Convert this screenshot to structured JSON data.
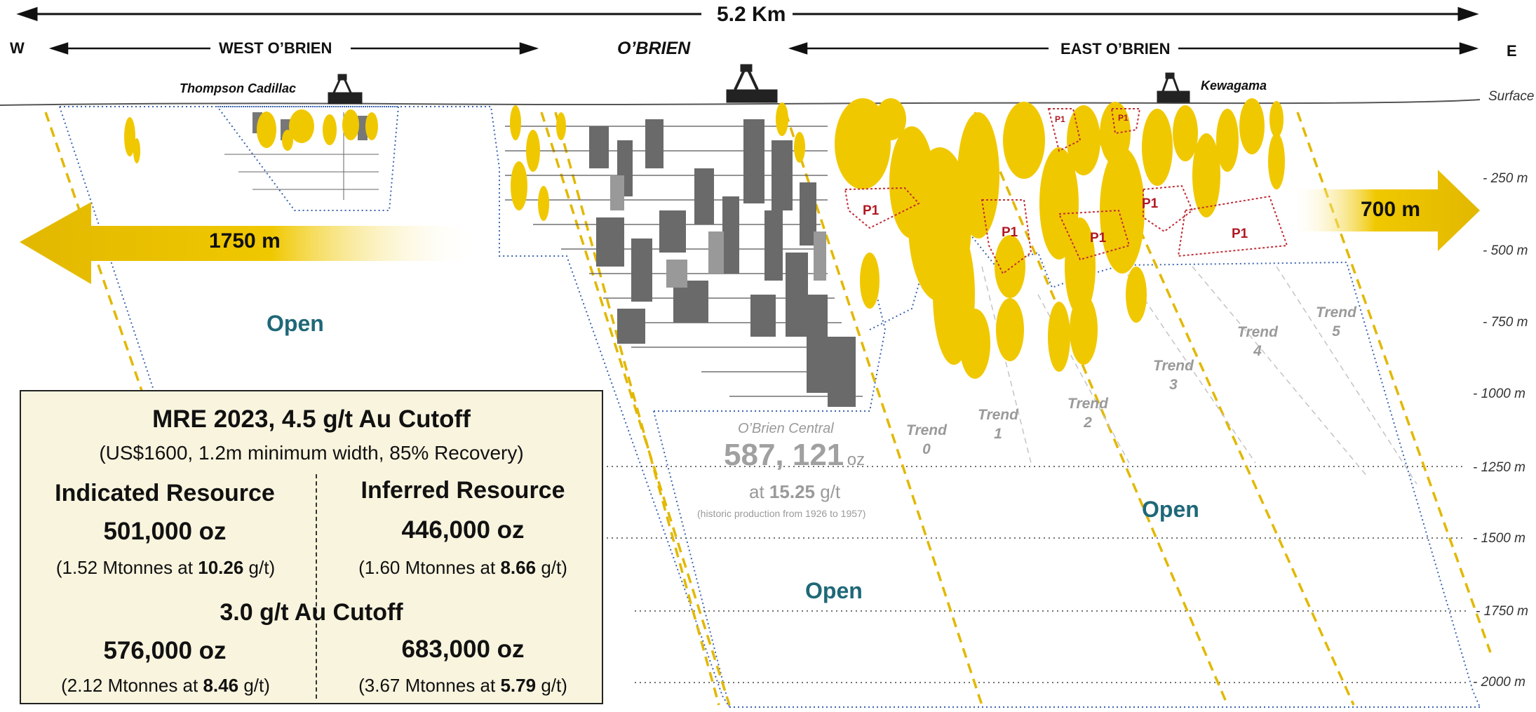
{
  "header": {
    "total_length": "5.2 Km",
    "west_letter": "W",
    "east_letter": "E",
    "west_section": "WEST O’BRIEN",
    "central_section": "O’BRIEN",
    "east_section": "EAST O’BRIEN"
  },
  "mines": {
    "thompson": "Thompson Cadillac",
    "kewagama": "Kewagama"
  },
  "depth_labels": [
    "Surface",
    "- 250 m",
    "- 500 m",
    "- 750 m",
    "- 1000 m",
    "- 1250 m",
    "- 1500 m",
    "- 1750 m",
    "- 2000 m"
  ],
  "arrows": {
    "west": "1750 m",
    "east": "700 m"
  },
  "open_labels": [
    "Open",
    "Open",
    "Open"
  ],
  "zones": {
    "p1_label": "P1"
  },
  "trends": [
    {
      "line1": "Trend",
      "line2": "0"
    },
    {
      "line1": "Trend",
      "line2": "1"
    },
    {
      "line1": "Trend",
      "line2": "2"
    },
    {
      "line1": "Trend",
      "line2": "3"
    },
    {
      "line1": "Trend",
      "line2": "4"
    },
    {
      "line1": "Trend",
      "line2": "5"
    }
  ],
  "historic": {
    "title": "O’Brien Central",
    "ounces": "587, 121",
    "unit": "oz",
    "grade_prefix": "at",
    "grade": "15.25",
    "grade_unit": "g/t",
    "note": "(historic production from 1926 to 1957)"
  },
  "mre": {
    "title": "MRE 2023, 4.5 g/t Au Cutoff",
    "params": "(US$1600, 1.2m minimum width, 85% Recovery)",
    "indicated_header": "Indicated Resource",
    "inferred_header": "Inferred Resource",
    "indicated_oz": "501,000 oz",
    "inferred_oz": "446,000 oz",
    "indicated_detail_prefix": "(1.52 Mtonnes at",
    "indicated_detail_grade": "10.26",
    "inferred_detail_prefix": "(1.60 Mtonnes at",
    "inferred_detail_grade": "8.66",
    "detail_suffix": "g/t)",
    "cutoff2_title": "3.0 g/t Au Cutoff",
    "indicated_oz_2": "576,000 oz",
    "inferred_oz_2": "683,000 oz",
    "indicated_detail_prefix_2": "(2.12 Mtonnes at",
    "indicated_detail_grade_2": "8.46",
    "inferred_detail_prefix_2": "(3.67 Mtonnes at",
    "inferred_detail_grade_2": "5.79"
  },
  "colors": {
    "gold": "#f0c800",
    "gold_dark": "#d9b000",
    "open_text": "#1f6878",
    "p1_text": "#b01822",
    "box_fill": "#f8f4de",
    "trend_text": "#9a9a9a"
  }
}
